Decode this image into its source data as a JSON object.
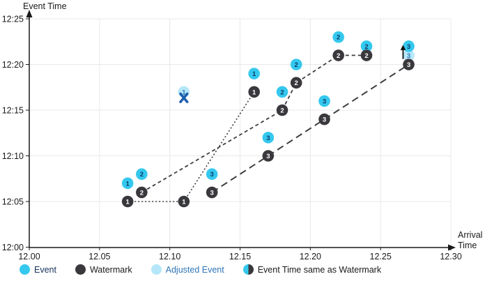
{
  "colors": {
    "event": "#35c8ee",
    "event_label": "#0a3a6b",
    "watermark": "#3a383c",
    "watermark_label": "#ffffff",
    "adjusted": "#b5e7f9",
    "adjusted_label": "#2e75b6",
    "line": "#3f3d42",
    "x_mark": "#1d5fae",
    "arrow": "#111111",
    "grid": "#e8e8e8",
    "axis": "#1a1a1a",
    "tick_text": "#1a1a1a"
  },
  "chart_data": {
    "type": "scatter",
    "xlabel_line1": "Arrival",
    "xlabel_line2": "Time",
    "ylabel": "Event Time",
    "xlim": [
      12.0,
      12.3
    ],
    "ylim_minutes": [
      0,
      25
    ],
    "x_ticks": [
      12.0,
      12.05,
      12.1,
      12.15,
      12.2,
      12.25,
      12.3
    ],
    "x_tick_labels": [
      "12.00",
      "12.05",
      "12.10",
      "12.15",
      "12.20",
      "12.25",
      "12.30"
    ],
    "y_ticks": [
      0,
      5,
      10,
      15,
      20,
      25
    ],
    "y_tick_labels": [
      "12:00",
      "12:05",
      "12:10",
      "12:15",
      "12:20",
      "12:25"
    ],
    "grid": true,
    "series": [
      {
        "name": "Adjusted Event",
        "marker": "circle",
        "color_key": "adjusted",
        "label_color_key": "adjusted_label",
        "points": [
          {
            "x": 12.11,
            "y": 17,
            "label": "1"
          },
          {
            "x": 12.27,
            "y": 21,
            "label": "3"
          }
        ]
      },
      {
        "name": "Event",
        "marker": "circle",
        "color_key": "event",
        "label_color_key": "event_label",
        "points": [
          {
            "x": 12.07,
            "y": 7,
            "label": "1"
          },
          {
            "x": 12.16,
            "y": 19,
            "label": "1"
          },
          {
            "x": 12.08,
            "y": 8,
            "label": "2"
          },
          {
            "x": 12.18,
            "y": 17,
            "label": "2"
          },
          {
            "x": 12.19,
            "y": 20,
            "label": "2"
          },
          {
            "x": 12.22,
            "y": 23,
            "label": "2"
          },
          {
            "x": 12.24,
            "y": 22,
            "label": "2"
          },
          {
            "x": 12.13,
            "y": 8,
            "label": "3"
          },
          {
            "x": 12.17,
            "y": 12,
            "label": "3"
          },
          {
            "x": 12.21,
            "y": 16,
            "label": "3"
          },
          {
            "x": 12.27,
            "y": 22,
            "label": "3"
          }
        ]
      },
      {
        "name": "Watermark",
        "marker": "circle",
        "color_key": "watermark",
        "label_color_key": "watermark_label",
        "points": [
          {
            "x": 12.07,
            "y": 5,
            "label": "1"
          },
          {
            "x": 12.11,
            "y": 5,
            "label": "1"
          },
          {
            "x": 12.16,
            "y": 17,
            "label": "1"
          },
          {
            "x": 12.08,
            "y": 6,
            "label": "2"
          },
          {
            "x": 12.18,
            "y": 15,
            "label": "2"
          },
          {
            "x": 12.19,
            "y": 18,
            "label": "2"
          },
          {
            "x": 12.22,
            "y": 21,
            "label": "2"
          },
          {
            "x": 12.24,
            "y": 21,
            "label": "2"
          },
          {
            "x": 12.13,
            "y": 6,
            "label": "3"
          },
          {
            "x": 12.17,
            "y": 10,
            "label": "3"
          },
          {
            "x": 12.21,
            "y": 14,
            "label": "3"
          },
          {
            "x": 12.27,
            "y": 20,
            "label": "3"
          }
        ]
      }
    ],
    "connector_lines": [
      {
        "name": "watermark-1-path",
        "style": "dotted",
        "points": [
          [
            12.07,
            5
          ],
          [
            12.11,
            5
          ],
          [
            12.16,
            17
          ]
        ]
      },
      {
        "name": "watermark-2-path",
        "style": "dashed",
        "points": [
          [
            12.08,
            6
          ],
          [
            12.18,
            15
          ],
          [
            12.19,
            18
          ],
          [
            12.22,
            21
          ],
          [
            12.24,
            21
          ]
        ]
      },
      {
        "name": "watermark-3-path",
        "style": "longdash",
        "points": [
          [
            12.13,
            6
          ],
          [
            12.17,
            10
          ],
          [
            12.21,
            14
          ],
          [
            12.27,
            20
          ]
        ]
      }
    ],
    "annotations": [
      {
        "type": "x-mark",
        "x": 12.11,
        "y": 16.35
      },
      {
        "type": "up-arrow",
        "x": 12.266,
        "y_from": 20.6,
        "y_to": 22.15
      }
    ]
  },
  "legend": {
    "items": [
      {
        "label": "Event",
        "swatch": "event",
        "text_color": "#16325c"
      },
      {
        "label": "Watermark",
        "swatch": "watermark",
        "text_color": "#1a1a1a"
      },
      {
        "label": "Adjusted Event",
        "swatch": "adjusted",
        "text_color": "#2e75b6"
      },
      {
        "label": "Event Time same as Watermark",
        "swatch": "half",
        "text_color": "#1a1a1a"
      }
    ]
  }
}
